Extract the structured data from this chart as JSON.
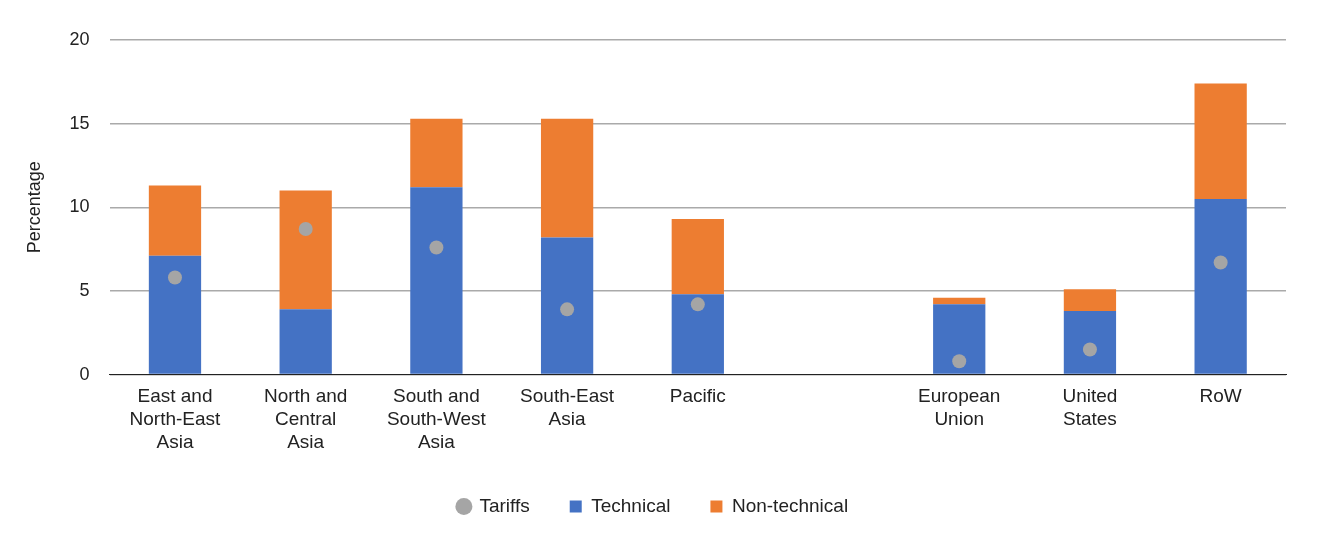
{
  "chart_data": {
    "type": "bar",
    "stacked": true,
    "ylabel": "Percentage",
    "categories": [
      "East and North-East Asia",
      "North and Central Asia",
      "South and South-West Asia",
      "South-East Asia",
      "Pacific",
      null,
      "European Union",
      "United States",
      "RoW"
    ],
    "series": [
      {
        "name": "Technical",
        "color": "#4472c4",
        "values": [
          7.1,
          3.9,
          11.2,
          8.2,
          4.8,
          null,
          4.2,
          3.8,
          10.5
        ]
      },
      {
        "name": "Non-technical",
        "color": "#ed7d31",
        "values": [
          4.2,
          7.1,
          4.1,
          7.1,
          4.5,
          null,
          0.4,
          1.3,
          6.9
        ]
      },
      {
        "name": "Tariffs",
        "type": "scatter",
        "color": "#a5a5a5",
        "marker": "circle",
        "values": [
          5.8,
          8.7,
          7.6,
          3.9,
          4.2,
          null,
          0.8,
          1.5,
          6.7
        ]
      }
    ],
    "ylim": [
      0,
      20
    ],
    "yticks": [
      0,
      5,
      10,
      15,
      20
    ],
    "grid": "y",
    "legend": "bottom"
  }
}
